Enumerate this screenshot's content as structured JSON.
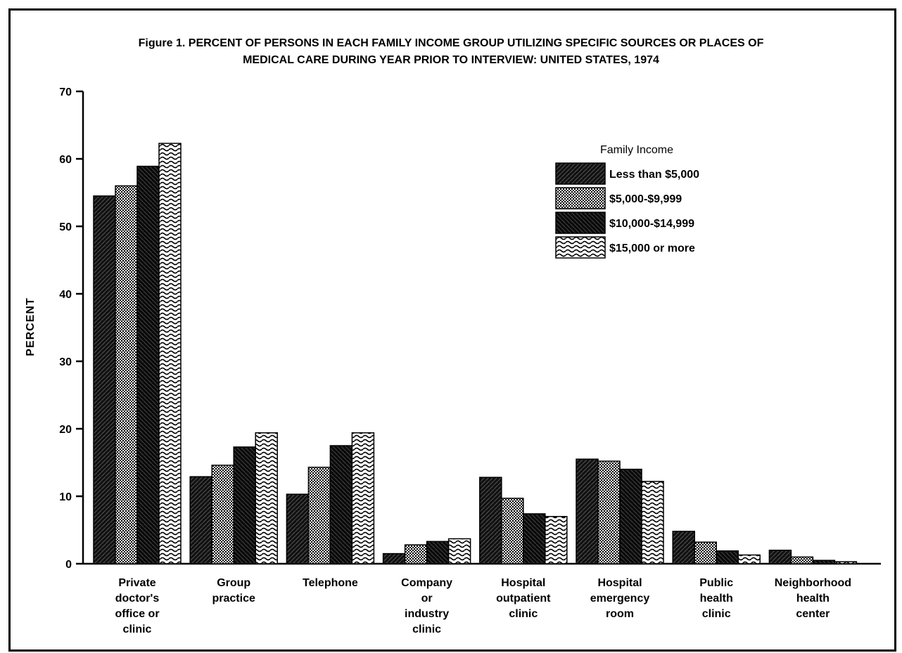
{
  "chart_data": {
    "type": "bar",
    "title_lines": [
      "Figure 1. PERCENT OF PERSONS IN EACH FAMILY INCOME GROUP UTILIZING SPECIFIC SOURCES OR PLACES OF",
      "MEDICAL CARE DURING YEAR PRIOR TO INTERVIEW: UNITED STATES, 1974"
    ],
    "ylabel": "PERCENT",
    "ylim": [
      0,
      70
    ],
    "yticks": [
      0,
      10,
      20,
      30,
      40,
      50,
      60,
      70
    ],
    "legend": {
      "title": "Family Income",
      "placement": "top-right"
    },
    "categories": [
      [
        "Private",
        "doctor's",
        "office or",
        "clinic"
      ],
      [
        "Group",
        "practice"
      ],
      [
        "Telephone"
      ],
      [
        "Company",
        "or",
        "industry",
        "clinic"
      ],
      [
        "Hospital",
        "outpatient",
        "clinic"
      ],
      [
        "Hospital",
        "emergency",
        "room"
      ],
      [
        "Public",
        "health",
        "clinic"
      ],
      [
        "Neighborhood",
        "health",
        "center"
      ]
    ],
    "series": [
      {
        "name": "Less than $5,000",
        "pattern": "dark-diagonal",
        "values": [
          54.5,
          12.9,
          10.3,
          1.5,
          12.8,
          15.5,
          4.8,
          2.0
        ]
      },
      {
        "name": "$5,000-$9,999",
        "pattern": "checker",
        "values": [
          56.0,
          14.6,
          14.3,
          2.8,
          9.7,
          15.2,
          3.2,
          1.0
        ]
      },
      {
        "name": "$10,000-$14,999",
        "pattern": "dark-hatch",
        "values": [
          58.9,
          17.3,
          17.5,
          3.3,
          7.4,
          14.0,
          1.9,
          0.5
        ]
      },
      {
        "name": "$15,000 or more",
        "pattern": "wave",
        "values": [
          62.3,
          19.4,
          19.4,
          3.7,
          7.0,
          12.2,
          1.3,
          0.3
        ]
      }
    ]
  }
}
